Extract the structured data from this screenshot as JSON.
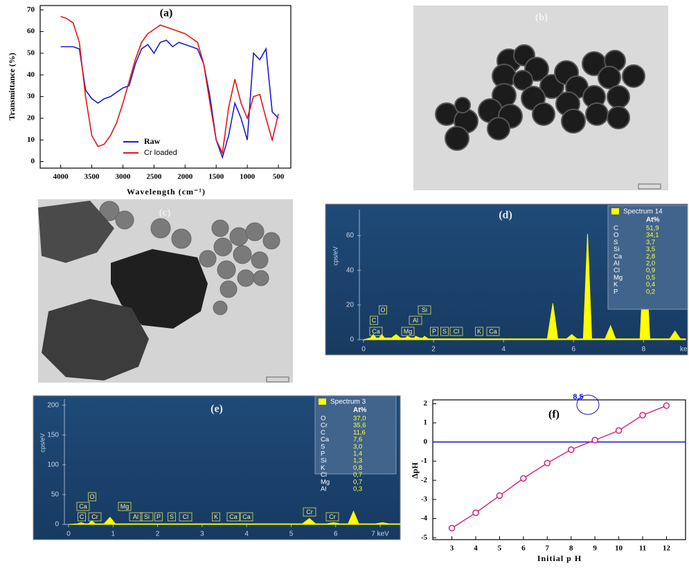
{
  "chart_data": [
    {
      "type": "line",
      "title": "(a)",
      "xlabel": "Wavelength (cm⁻¹)",
      "ylabel": "Transmittance (%)",
      "x": [
        4000,
        3900,
        3800,
        3700,
        3600,
        3500,
        3400,
        3300,
        3200,
        3100,
        3000,
        2900,
        2800,
        2700,
        2600,
        2500,
        2400,
        2300,
        2200,
        2100,
        2000,
        1900,
        1800,
        1700,
        1600,
        1500,
        1400,
        1300,
        1200,
        1100,
        1000,
        900,
        800,
        700,
        600,
        500
      ],
      "series": [
        {
          "name": "Raw",
          "color": "#1a1ad6",
          "values": [
            53,
            53,
            53,
            52,
            33,
            29,
            27,
            29,
            30,
            32,
            34,
            35,
            45,
            52,
            54,
            50,
            55,
            56,
            53,
            55,
            54,
            53,
            52,
            45,
            30,
            10,
            2,
            12,
            27,
            20,
            10,
            50,
            47,
            52,
            23,
            20
          ]
        },
        {
          "name": "Cr loaded",
          "color": "#e31414",
          "values": [
            67,
            66,
            64,
            55,
            30,
            12,
            7,
            8,
            12,
            18,
            27,
            37,
            47,
            55,
            59,
            61,
            63,
            62,
            61,
            60,
            59,
            57,
            55,
            45,
            27,
            10,
            4,
            25,
            38,
            27,
            20,
            30,
            31,
            20,
            10,
            22
          ]
        }
      ],
      "xlim": [
        4330,
        300
      ],
      "xticks": [
        4000,
        3500,
        3000,
        2500,
        2000,
        1500,
        1000,
        500
      ],
      "ylim": [
        -3,
        72
      ],
      "yticks": [
        0,
        10,
        20,
        30,
        40,
        50,
        60,
        70
      ],
      "legend": "lower center"
    },
    {
      "type": "area",
      "title": "(d)",
      "ylabel": "cps/eV",
      "x_unit": "ke",
      "color": "#ffff00",
      "x": [
        0,
        0.2,
        0.28,
        0.36,
        0.45,
        0.52,
        0.6,
        0.8,
        0.93,
        1.05,
        1.2,
        1.25,
        1.35,
        1.45,
        1.49,
        1.6,
        1.7,
        1.74,
        1.85,
        2.0,
        5.25,
        5.41,
        5.55,
        5.8,
        5.95,
        6.1,
        6.28,
        6.4,
        6.52,
        6.9,
        7.06,
        7.2,
        7.9,
        8.04,
        8.18,
        8.75,
        8.9,
        9.05,
        9.2
      ],
      "values": [
        0,
        1,
        3,
        1,
        1,
        3,
        1,
        1,
        3,
        1,
        1,
        2,
        1,
        1,
        2,
        1,
        1,
        2,
        0.5,
        0.5,
        0.5,
        21,
        0.5,
        0.5,
        3,
        0.5,
        0.5,
        61,
        0.5,
        0.5,
        8,
        0.5,
        0.5,
        57,
        0.5,
        0.5,
        5,
        0.5,
        0.5
      ],
      "xlim": [
        0,
        9.2
      ],
      "xticks": [
        0,
        2,
        4,
        6,
        8
      ],
      "ylim": [
        0,
        75
      ],
      "yticks": [
        0,
        20,
        40,
        60
      ],
      "peak_labels": [
        "C",
        "O",
        "Ca",
        "Mg",
        "Al",
        "Si",
        "P",
        "S",
        "Cl",
        "K",
        "Ca"
      ],
      "legend_table": {
        "title": "Spectrum 14",
        "header": "At%",
        "rows": [
          [
            "C",
            "51,9"
          ],
          [
            "O",
            "34,1"
          ],
          [
            "S",
            "3,7"
          ],
          [
            "Si",
            "3,5"
          ],
          [
            "Ca",
            "2,8"
          ],
          [
            "Al",
            "2,0"
          ],
          [
            "Cl",
            "0,9"
          ],
          [
            "Mg",
            "0,5"
          ],
          [
            "K",
            "0,4"
          ],
          [
            "P",
            "0,2"
          ]
        ]
      }
    },
    {
      "type": "area",
      "title": "(e)",
      "ylabel": "cps/eV",
      "color": "#ffff00",
      "x": [
        0,
        0.2,
        0.28,
        0.36,
        0.45,
        0.52,
        0.6,
        0.8,
        0.93,
        1.05,
        5.25,
        5.41,
        5.55,
        5.8,
        5.95,
        6.1,
        6.28,
        6.4,
        6.52,
        6.9,
        7.05,
        7.2,
        7.45
      ],
      "values": [
        0,
        1,
        3,
        1,
        1,
        6,
        1,
        1,
        12,
        1,
        1,
        10,
        1,
        1,
        3,
        1,
        1,
        22,
        1,
        1,
        3,
        1,
        1
      ],
      "xlim": [
        0,
        7.45
      ],
      "xticks": [
        0,
        1,
        2,
        3,
        4,
        5,
        6,
        {
          "value": 7,
          "label": "7 keV"
        }
      ],
      "ylim": [
        0,
        210
      ],
      "yticks": [
        0,
        50,
        100,
        150,
        200
      ],
      "peak_labels": [
        "Ca",
        "O",
        "C",
        "Cr",
        "Mg",
        "Al",
        "Si",
        "P",
        "S",
        "Cl",
        "K",
        "Ca",
        "Ca",
        "Cr",
        "Cr"
      ],
      "legend_table": {
        "title": "Spectrum 3",
        "header": "At%",
        "rows": [
          [
            "O",
            "37,0"
          ],
          [
            "Cr",
            "35,6"
          ],
          [
            "C",
            "11,6"
          ],
          [
            "Ca",
            "7,6"
          ],
          [
            "S",
            "3,0"
          ],
          [
            "P",
            "1,4"
          ],
          [
            "Si",
            "1,3"
          ],
          [
            "K",
            "0,8"
          ],
          [
            "Cl",
            "0,7"
          ],
          [
            "Mg",
            "0,7"
          ],
          [
            "Al",
            "0,3"
          ]
        ]
      }
    },
    {
      "type": "line",
      "markers": true,
      "title": "(f)",
      "xlabel": "Initial p H",
      "ylabel": "∆pH",
      "color": "#d0207a",
      "x": [
        3,
        4,
        5,
        6,
        7,
        8,
        9,
        10,
        11,
        12
      ],
      "values": [
        -4.5,
        -3.7,
        -2.8,
        -1.9,
        -1.1,
        -0.4,
        0.1,
        0.6,
        1.4,
        1.9
      ],
      "xlim": [
        2.2,
        12.8
      ],
      "xticks": [
        3,
        4,
        5,
        6,
        7,
        8,
        9,
        10,
        11,
        12
      ],
      "ylim": [
        -5.1,
        2.2
      ],
      "yticks": [
        -5,
        -4,
        -3,
        -2,
        -1,
        0,
        1,
        2
      ],
      "hline": 0,
      "hline_color": "#1414c8",
      "annotation": "8.5"
    }
  ],
  "images": [
    {
      "label": "(b)"
    },
    {
      "label": "(c)"
    }
  ]
}
